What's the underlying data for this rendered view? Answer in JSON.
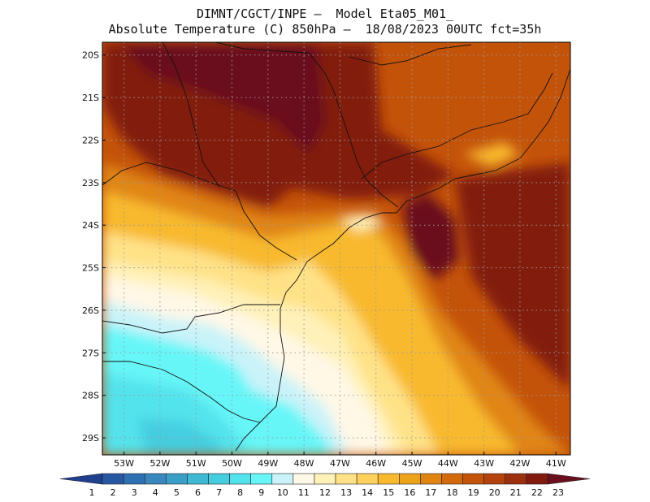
{
  "title": {
    "line1": "DIMNT/CGCT/INPE –  Model Eta05_M01_",
    "line2": "Absolute Temperature (C) 850hPa –  18/08/2023 00UTC fct=35h"
  },
  "axes": {
    "lat_labels": [
      "20S",
      "21S",
      "22S",
      "23S",
      "24S",
      "25S",
      "26S",
      "27S",
      "28S",
      "29S"
    ],
    "lon_labels": [
      "53W",
      "52W",
      "51W",
      "50W",
      "49W",
      "48W",
      "47W",
      "46W",
      "45W",
      "44W",
      "43W",
      "42W",
      "41W"
    ],
    "lat_range": [
      -29.4,
      -19.7
    ],
    "lon_range": [
      -53.6,
      -40.6
    ],
    "grid": "dotted"
  },
  "colorbar": {
    "labels": [
      "1",
      "2",
      "3",
      "4",
      "5",
      "6",
      "7",
      "8",
      "9",
      "10",
      "11",
      "12",
      "13",
      "14",
      "15",
      "16",
      "17",
      "18",
      "19",
      "20",
      "21",
      "22",
      "23"
    ],
    "colors": [
      "#1f3f8f",
      "#2958a2",
      "#2e71b3",
      "#3a87c0",
      "#3a9fc7",
      "#3fb8d4",
      "#45cde0",
      "#52e3ec",
      "#66f6f8",
      "#c9f3f9",
      "#fff8e6",
      "#fff1b8",
      "#ffe287",
      "#fed05d",
      "#f8b92e",
      "#eda21c",
      "#e08512",
      "#d36a0a",
      "#c4530a",
      "#b3420d",
      "#9c2f0e",
      "#821a10",
      "#6a0f1e"
    ]
  },
  "chart_data": {
    "type": "heatmap",
    "title": "Absolute Temperature (C) 850hPa",
    "units": "C",
    "value_range": [
      1,
      23
    ]
  }
}
